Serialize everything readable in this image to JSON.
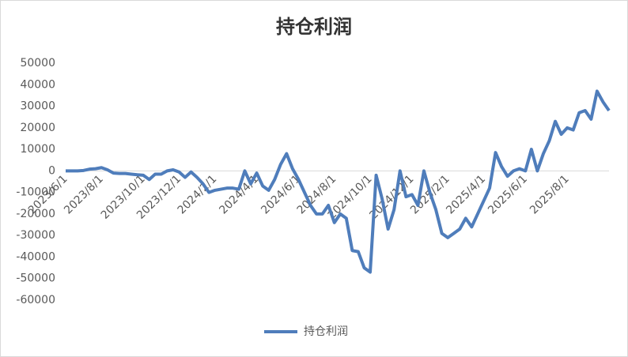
{
  "chart_data": {
    "type": "line",
    "title": "持仓利润",
    "categories": [
      "2023/6/1",
      null,
      null,
      null,
      null,
      null,
      "2023/8/1",
      null,
      null,
      null,
      null,
      null,
      null,
      "2023/10/1",
      null,
      null,
      null,
      null,
      null,
      "2023/12/1",
      null,
      null,
      null,
      null,
      null,
      "2024/2/1",
      null,
      null,
      null,
      null,
      null,
      null,
      "2024/4/1",
      null,
      null,
      null,
      null,
      null,
      null,
      "2024/6/1",
      null,
      null,
      null,
      null,
      null,
      "2024/8/1",
      null,
      null,
      null,
      null,
      null,
      "2024/10/1",
      null,
      null,
      null,
      null,
      null,
      null,
      "2024/12/1",
      null,
      null,
      null,
      null,
      null,
      "2025/2/1",
      null,
      null,
      null,
      null,
      null,
      "2025/4/1",
      null,
      null,
      null,
      null,
      null,
      null,
      "2025/6/1",
      null,
      null,
      null,
      null,
      null,
      null,
      "2025/8/1",
      null,
      null,
      null,
      null,
      null,
      null,
      null
    ],
    "series": [
      {
        "name": "持仓利润",
        "color": "#4f7dbb",
        "values": [
          0,
          0,
          0,
          200,
          800,
          1000,
          1500,
          500,
          -1000,
          -1200,
          -1200,
          -1500,
          -1800,
          -2000,
          -4000,
          -1500,
          -1500,
          0,
          500,
          -500,
          -3000,
          -500,
          -3000,
          -6000,
          -10000,
          -9000,
          -8500,
          -8000,
          -8000,
          -8500,
          0,
          -6000,
          -1000,
          -7000,
          -9000,
          -4000,
          3000,
          8000,
          1000,
          -4000,
          -10000,
          -16000,
          -20000,
          -20000,
          -16000,
          -24000,
          -20000,
          -22000,
          -37000,
          -37500,
          -45000,
          -47000,
          -2000,
          -13000,
          -27000,
          -18000,
          0,
          -12000,
          -11000,
          -16000,
          0,
          -10000,
          -18000,
          -29000,
          -31000,
          -29000,
          -27000,
          -22000,
          -26000,
          -20000,
          -14000,
          -8000,
          8500,
          2000,
          -2500,
          0,
          1000,
          0,
          10000,
          0,
          8000,
          14000,
          23000,
          17000,
          20000,
          19000,
          27000,
          28000,
          24000,
          37000,
          32000,
          28000
        ]
      }
    ],
    "ylim": [
      -60000,
      50000
    ],
    "yticks": [
      -60000,
      -50000,
      -40000,
      -30000,
      -20000,
      -10000,
      0,
      10000,
      20000,
      30000,
      40000,
      50000
    ],
    "legend": "bottom"
  }
}
